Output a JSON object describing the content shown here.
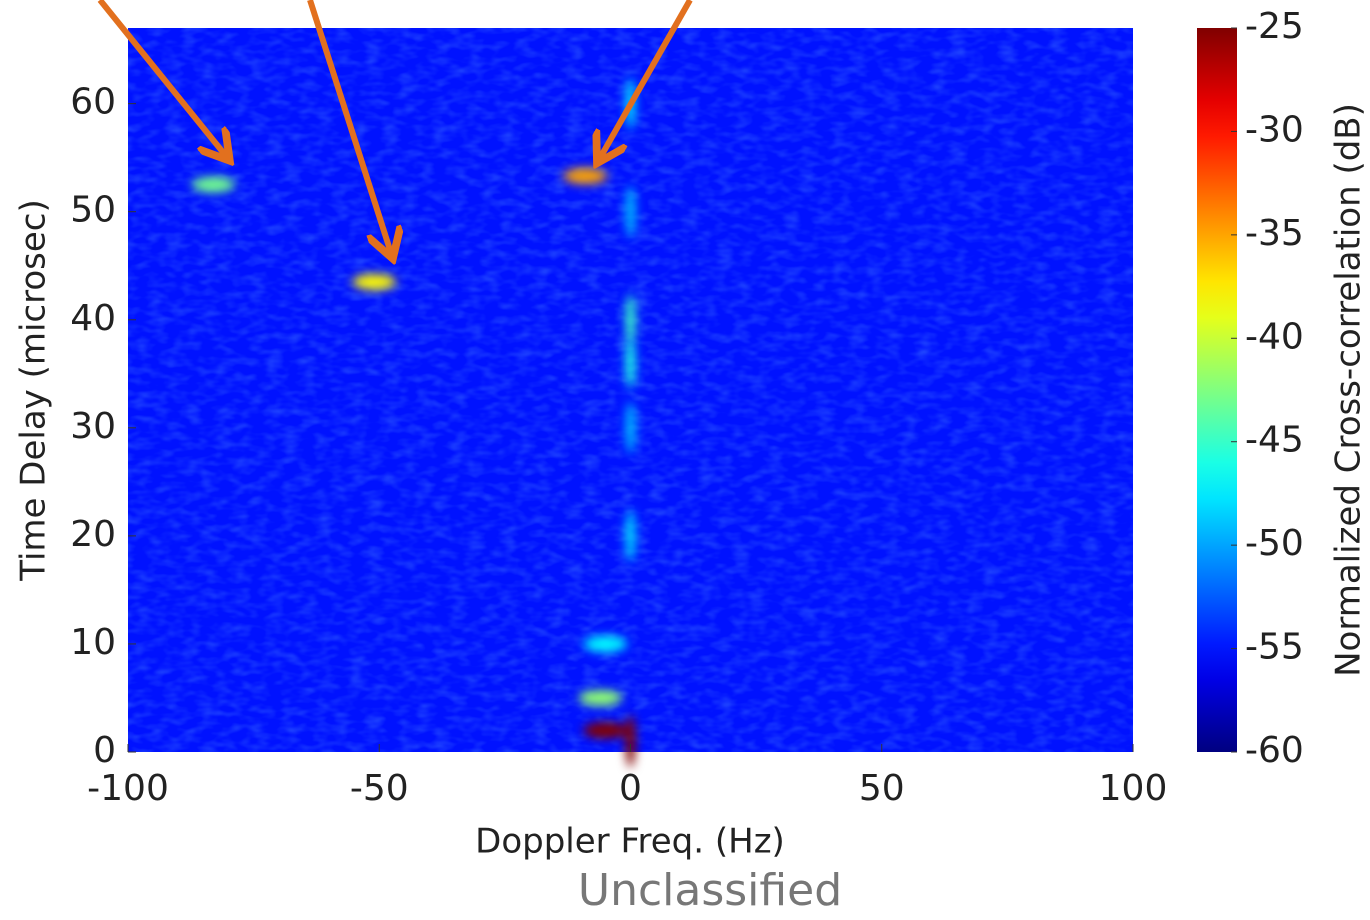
{
  "chart_data": {
    "type": "heatmap",
    "xlabel": "Doppler Freq. (Hz)",
    "ylabel": "Time Delay (microsec)",
    "xlim": [
      -100,
      100
    ],
    "xticks": [
      -100,
      -50,
      0,
      50,
      100
    ],
    "ylim": [
      0,
      67
    ],
    "yticks": [
      0,
      10,
      20,
      30,
      40,
      50,
      60
    ],
    "colormap": "jet",
    "clim": [
      -60,
      -25
    ],
    "cticks": [
      -60,
      -55,
      -50,
      -45,
      -40,
      -35,
      -30,
      -25
    ],
    "clabel": "Normalized Cross-correlation (dB)",
    "background": -55,
    "points": [
      {
        "x": -83,
        "y": 52.5,
        "z": -43
      },
      {
        "x": -51,
        "y": 43.5,
        "z": -38
      },
      {
        "x": -9,
        "y": 53.3,
        "z": -35
      },
      {
        "x": 0,
        "y": 60,
        "z": -48
      },
      {
        "x": 0,
        "y": 50,
        "z": -49
      },
      {
        "x": 0,
        "y": 40,
        "z": -45
      },
      {
        "x": 0,
        "y": 36,
        "z": -46
      },
      {
        "x": 0,
        "y": 30,
        "z": -49
      },
      {
        "x": 0,
        "y": 20,
        "z": -48
      },
      {
        "x": -5,
        "y": 10,
        "z": -47
      },
      {
        "x": -6,
        "y": 5,
        "z": -42
      },
      {
        "x": -5,
        "y": 2,
        "z": -25
      },
      {
        "x": 0,
        "y": 1,
        "z": -25
      }
    ],
    "footer": "Unclassified"
  }
}
